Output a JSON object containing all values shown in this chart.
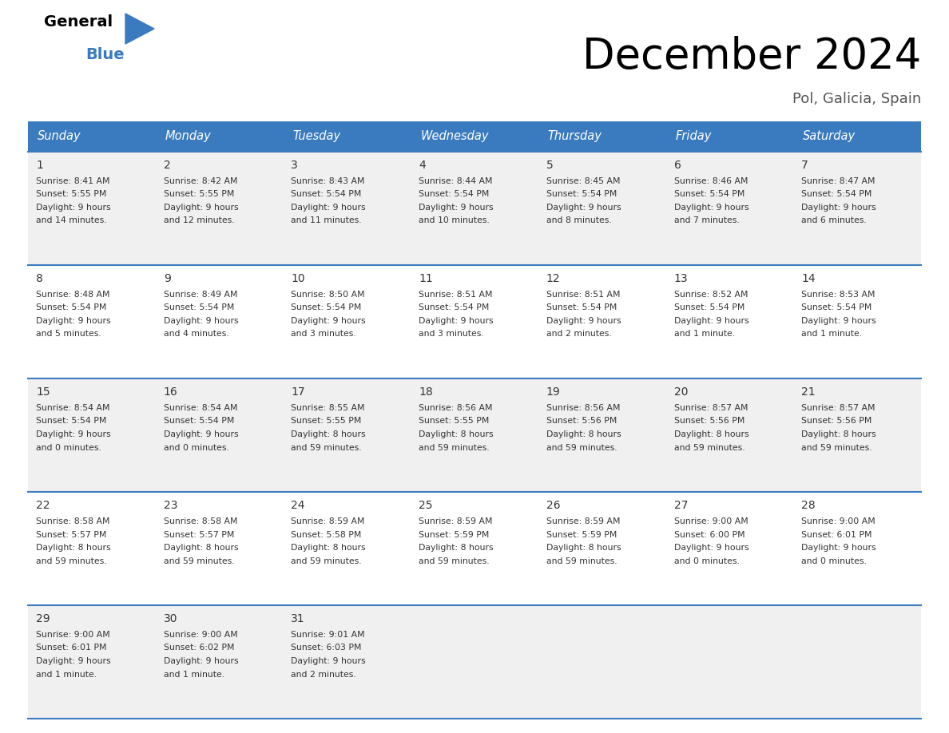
{
  "title": "December 2024",
  "subtitle": "Pol, Galicia, Spain",
  "header_bg": "#3a7bbf",
  "header_text": "#ffffff",
  "row_bg_even": "#f0f0f0",
  "row_bg_odd": "#ffffff",
  "separator_color": "#3a7bbf",
  "text_color": "#333333",
  "day_names": [
    "Sunday",
    "Monday",
    "Tuesday",
    "Wednesday",
    "Thursday",
    "Friday",
    "Saturday"
  ],
  "days": [
    {
      "day": 1,
      "col": 0,
      "row": 0,
      "sunrise": "8:41 AM",
      "sunset": "5:55 PM",
      "daylight_h": "9 hours",
      "daylight_m": "and 14 minutes."
    },
    {
      "day": 2,
      "col": 1,
      "row": 0,
      "sunrise": "8:42 AM",
      "sunset": "5:55 PM",
      "daylight_h": "9 hours",
      "daylight_m": "and 12 minutes."
    },
    {
      "day": 3,
      "col": 2,
      "row": 0,
      "sunrise": "8:43 AM",
      "sunset": "5:54 PM",
      "daylight_h": "9 hours",
      "daylight_m": "and 11 minutes."
    },
    {
      "day": 4,
      "col": 3,
      "row": 0,
      "sunrise": "8:44 AM",
      "sunset": "5:54 PM",
      "daylight_h": "9 hours",
      "daylight_m": "and 10 minutes."
    },
    {
      "day": 5,
      "col": 4,
      "row": 0,
      "sunrise": "8:45 AM",
      "sunset": "5:54 PM",
      "daylight_h": "9 hours",
      "daylight_m": "and 8 minutes."
    },
    {
      "day": 6,
      "col": 5,
      "row": 0,
      "sunrise": "8:46 AM",
      "sunset": "5:54 PM",
      "daylight_h": "9 hours",
      "daylight_m": "and 7 minutes."
    },
    {
      "day": 7,
      "col": 6,
      "row": 0,
      "sunrise": "8:47 AM",
      "sunset": "5:54 PM",
      "daylight_h": "9 hours",
      "daylight_m": "and 6 minutes."
    },
    {
      "day": 8,
      "col": 0,
      "row": 1,
      "sunrise": "8:48 AM",
      "sunset": "5:54 PM",
      "daylight_h": "9 hours",
      "daylight_m": "and 5 minutes."
    },
    {
      "day": 9,
      "col": 1,
      "row": 1,
      "sunrise": "8:49 AM",
      "sunset": "5:54 PM",
      "daylight_h": "9 hours",
      "daylight_m": "and 4 minutes."
    },
    {
      "day": 10,
      "col": 2,
      "row": 1,
      "sunrise": "8:50 AM",
      "sunset": "5:54 PM",
      "daylight_h": "9 hours",
      "daylight_m": "and 3 minutes."
    },
    {
      "day": 11,
      "col": 3,
      "row": 1,
      "sunrise": "8:51 AM",
      "sunset": "5:54 PM",
      "daylight_h": "9 hours",
      "daylight_m": "and 3 minutes."
    },
    {
      "day": 12,
      "col": 4,
      "row": 1,
      "sunrise": "8:51 AM",
      "sunset": "5:54 PM",
      "daylight_h": "9 hours",
      "daylight_m": "and 2 minutes."
    },
    {
      "day": 13,
      "col": 5,
      "row": 1,
      "sunrise": "8:52 AM",
      "sunset": "5:54 PM",
      "daylight_h": "9 hours",
      "daylight_m": "and 1 minute."
    },
    {
      "day": 14,
      "col": 6,
      "row": 1,
      "sunrise": "8:53 AM",
      "sunset": "5:54 PM",
      "daylight_h": "9 hours",
      "daylight_m": "and 1 minute."
    },
    {
      "day": 15,
      "col": 0,
      "row": 2,
      "sunrise": "8:54 AM",
      "sunset": "5:54 PM",
      "daylight_h": "9 hours",
      "daylight_m": "and 0 minutes."
    },
    {
      "day": 16,
      "col": 1,
      "row": 2,
      "sunrise": "8:54 AM",
      "sunset": "5:54 PM",
      "daylight_h": "9 hours",
      "daylight_m": "and 0 minutes."
    },
    {
      "day": 17,
      "col": 2,
      "row": 2,
      "sunrise": "8:55 AM",
      "sunset": "5:55 PM",
      "daylight_h": "8 hours",
      "daylight_m": "and 59 minutes."
    },
    {
      "day": 18,
      "col": 3,
      "row": 2,
      "sunrise": "8:56 AM",
      "sunset": "5:55 PM",
      "daylight_h": "8 hours",
      "daylight_m": "and 59 minutes."
    },
    {
      "day": 19,
      "col": 4,
      "row": 2,
      "sunrise": "8:56 AM",
      "sunset": "5:56 PM",
      "daylight_h": "8 hours",
      "daylight_m": "and 59 minutes."
    },
    {
      "day": 20,
      "col": 5,
      "row": 2,
      "sunrise": "8:57 AM",
      "sunset": "5:56 PM",
      "daylight_h": "8 hours",
      "daylight_m": "and 59 minutes."
    },
    {
      "day": 21,
      "col": 6,
      "row": 2,
      "sunrise": "8:57 AM",
      "sunset": "5:56 PM",
      "daylight_h": "8 hours",
      "daylight_m": "and 59 minutes."
    },
    {
      "day": 22,
      "col": 0,
      "row": 3,
      "sunrise": "8:58 AM",
      "sunset": "5:57 PM",
      "daylight_h": "8 hours",
      "daylight_m": "and 59 minutes."
    },
    {
      "day": 23,
      "col": 1,
      "row": 3,
      "sunrise": "8:58 AM",
      "sunset": "5:57 PM",
      "daylight_h": "8 hours",
      "daylight_m": "and 59 minutes."
    },
    {
      "day": 24,
      "col": 2,
      "row": 3,
      "sunrise": "8:59 AM",
      "sunset": "5:58 PM",
      "daylight_h": "8 hours",
      "daylight_m": "and 59 minutes."
    },
    {
      "day": 25,
      "col": 3,
      "row": 3,
      "sunrise": "8:59 AM",
      "sunset": "5:59 PM",
      "daylight_h": "8 hours",
      "daylight_m": "and 59 minutes."
    },
    {
      "day": 26,
      "col": 4,
      "row": 3,
      "sunrise": "8:59 AM",
      "sunset": "5:59 PM",
      "daylight_h": "8 hours",
      "daylight_m": "and 59 minutes."
    },
    {
      "day": 27,
      "col": 5,
      "row": 3,
      "sunrise": "9:00 AM",
      "sunset": "6:00 PM",
      "daylight_h": "9 hours",
      "daylight_m": "and 0 minutes."
    },
    {
      "day": 28,
      "col": 6,
      "row": 3,
      "sunrise": "9:00 AM",
      "sunset": "6:01 PM",
      "daylight_h": "9 hours",
      "daylight_m": "and 0 minutes."
    },
    {
      "day": 29,
      "col": 0,
      "row": 4,
      "sunrise": "9:00 AM",
      "sunset": "6:01 PM",
      "daylight_h": "9 hours",
      "daylight_m": "and 1 minute."
    },
    {
      "day": 30,
      "col": 1,
      "row": 4,
      "sunrise": "9:00 AM",
      "sunset": "6:02 PM",
      "daylight_h": "9 hours",
      "daylight_m": "and 1 minute."
    },
    {
      "day": 31,
      "col": 2,
      "row": 4,
      "sunrise": "9:01 AM",
      "sunset": "6:03 PM",
      "daylight_h": "9 hours",
      "daylight_m": "and 2 minutes."
    }
  ],
  "num_rows": 5,
  "num_cols": 7,
  "fig_width": 11.88,
  "fig_height": 9.18,
  "dpi": 100
}
